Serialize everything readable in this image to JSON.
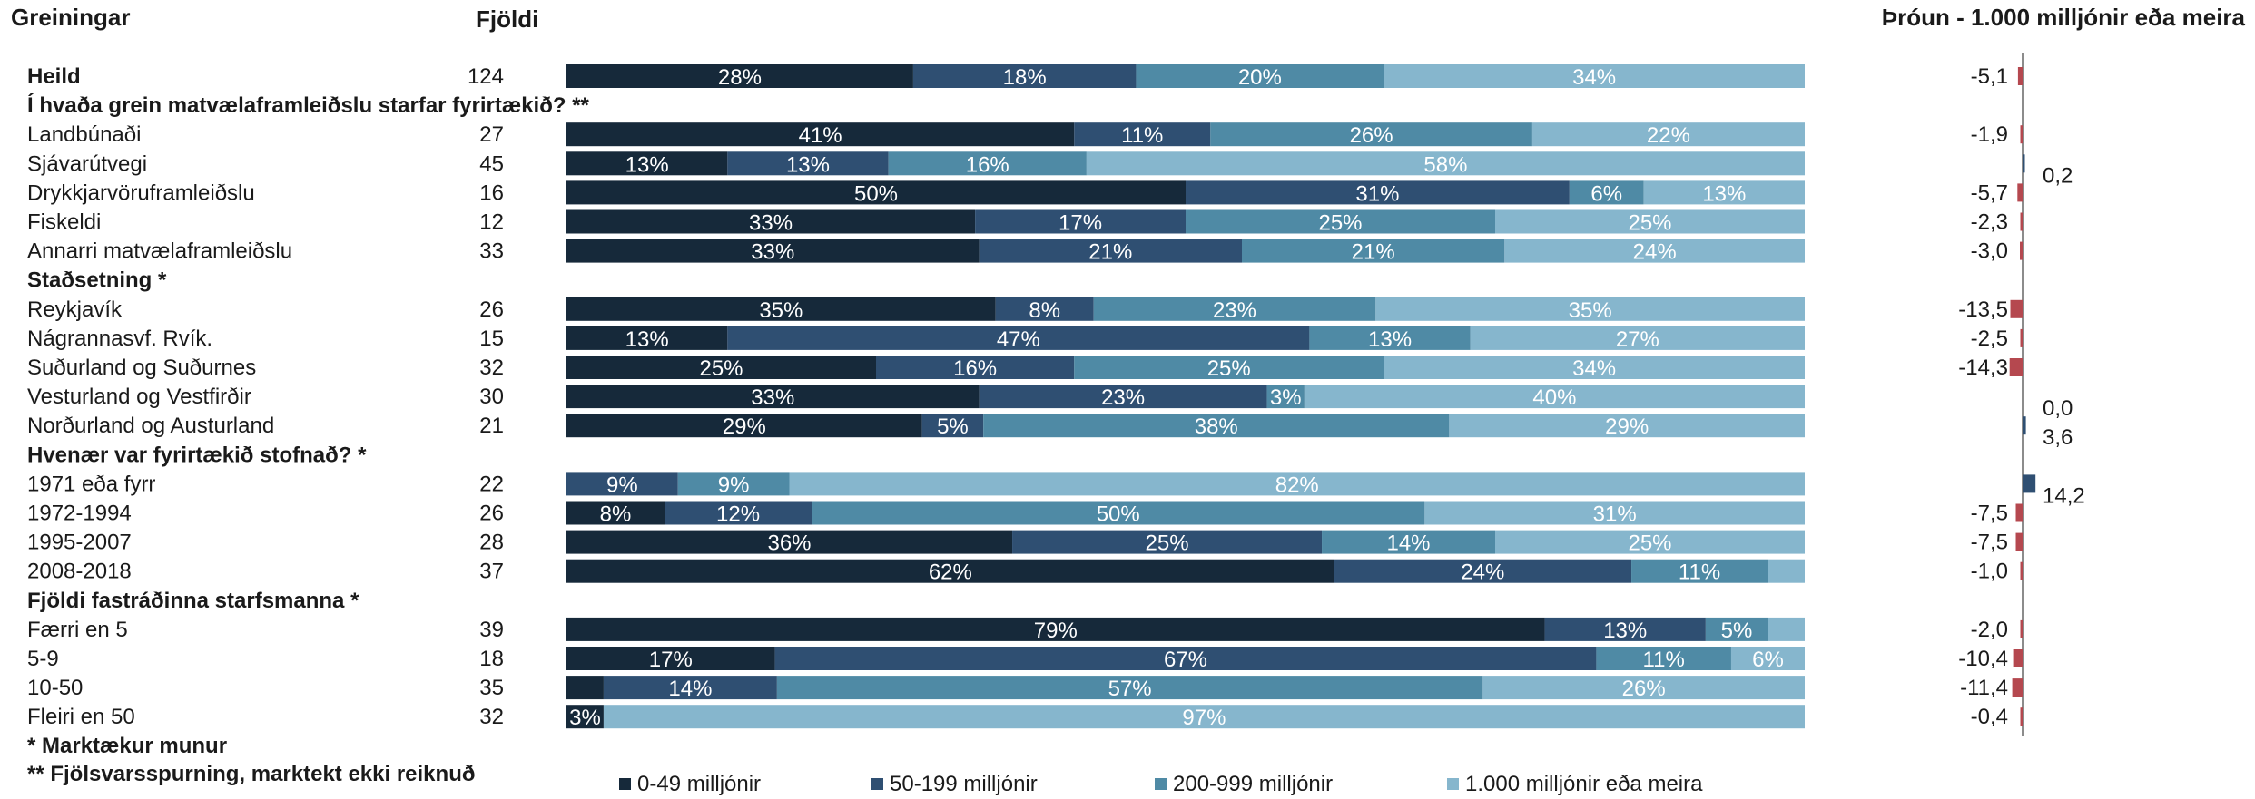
{
  "headers": {
    "category": "Greiningar",
    "count": "Fjöldi",
    "trend": "Þróun - 1.000 milljónir eða meira"
  },
  "footnotes": [
    "* Marktækur munur",
    "** Fjölsvarsspurning, marktekt ekki reiknuð"
  ],
  "colors": {
    "seg1": "#16293a",
    "seg2": "#2f4f72",
    "seg3": "#4f8aa5",
    "seg4": "#86b6cd",
    "trend_negative": "#b5484f",
    "trend_positive": "#2f4f72"
  },
  "chart_data": {
    "type": "bar",
    "stacked": true,
    "orientation": "horizontal",
    "xlim": [
      0,
      100
    ],
    "series": [
      {
        "name": "0-49 milljónir"
      },
      {
        "name": "50-199 milljónir"
      },
      {
        "name": "200-999 milljónir"
      },
      {
        "name": "1.000 milljónir eða meira"
      }
    ],
    "rows": [
      {
        "label": "Heild",
        "bold": true,
        "count": "124",
        "values": [
          28,
          18,
          20,
          34
        ],
        "labels": [
          "28%",
          "18%",
          "20%",
          "34%"
        ],
        "trend": -5.1,
        "trend_label": "-5,1"
      },
      {
        "label": "Í hvaða grein matvælaframleiðslu starfar fyrirtækið? **",
        "heading": true
      },
      {
        "label": "Landbúnaði",
        "count": "27",
        "values": [
          41,
          11,
          26,
          22
        ],
        "labels": [
          "41%",
          "11%",
          "26%",
          "22%"
        ],
        "trend": -1.9,
        "trend_label": "-1,9"
      },
      {
        "label": "Sjávarútvegi",
        "count": "45",
        "values": [
          13,
          13,
          16,
          58
        ],
        "labels": [
          "13%",
          "13%",
          "16%",
          "58%"
        ],
        "trend": 0.2,
        "trend_label": "0,2"
      },
      {
        "label": "Drykkjarvöruframleiðslu",
        "count": "16",
        "values": [
          50,
          31,
          6,
          13
        ],
        "labels": [
          "50%",
          "31%",
          "6%",
          "13%"
        ],
        "trend": -5.7,
        "trend_label": "-5,7"
      },
      {
        "label": "Fiskeldi",
        "count": "12",
        "values": [
          33,
          17,
          25,
          25
        ],
        "labels": [
          "33%",
          "17%",
          "25%",
          "25%"
        ],
        "trend": -2.3,
        "trend_label": "-2,3"
      },
      {
        "label": "Annarri matvælaframleiðslu",
        "count": "33",
        "values": [
          33,
          21,
          21,
          24
        ],
        "labels": [
          "33%",
          "21%",
          "21%",
          "24%"
        ],
        "trend": -3.0,
        "trend_label": "-3,0"
      },
      {
        "label": "Staðsetning *",
        "heading": true
      },
      {
        "label": "Reykjavík",
        "count": "26",
        "values": [
          35,
          8,
          23,
          35
        ],
        "labels": [
          "35%",
          "8%",
          "23%",
          "35%"
        ],
        "trend": -13.5,
        "trend_label": "-13,5"
      },
      {
        "label": "Nágrannasvf. Rvík.",
        "count": "15",
        "values": [
          13,
          47,
          13,
          27
        ],
        "labels": [
          "13%",
          "47%",
          "13%",
          "27%"
        ],
        "trend": -2.5,
        "trend_label": "-2,5"
      },
      {
        "label": "Suðurland og Suðurnes",
        "count": "32",
        "values": [
          25,
          16,
          25,
          34
        ],
        "labels": [
          "25%",
          "16%",
          "25%",
          "34%"
        ],
        "trend": -14.3,
        "trend_label": "-14,3"
      },
      {
        "label": "Vesturland og Vestfirðir",
        "count": "30",
        "values": [
          33,
          23,
          3,
          40
        ],
        "labels": [
          "33%",
          "23%",
          "3%",
          "40%"
        ],
        "trend": 0.0,
        "trend_label": "0,0"
      },
      {
        "label": "Norðurland og Austurland",
        "count": "21",
        "values": [
          29,
          5,
          38,
          29
        ],
        "labels": [
          "29%",
          "5%",
          "38%",
          "29%"
        ],
        "trend": 3.6,
        "trend_label": "3,6"
      },
      {
        "label": "Hvenær var fyrirtækið stofnað? *",
        "heading": true
      },
      {
        "label": "1971 eða fyrr",
        "count": "22",
        "values": [
          0,
          9,
          9,
          82
        ],
        "labels": [
          "",
          "9%",
          "9%",
          "82%"
        ],
        "trend": 14.2,
        "trend_label": "14,2"
      },
      {
        "label": "1972-1994",
        "count": "26",
        "values": [
          8,
          12,
          50,
          31
        ],
        "labels": [
          "8%",
          "12%",
          "50%",
          "31%"
        ],
        "trend": -7.5,
        "trend_label": "-7,5"
      },
      {
        "label": "1995-2007",
        "count": "28",
        "values": [
          36,
          25,
          14,
          25
        ],
        "labels": [
          "36%",
          "25%",
          "14%",
          "25%"
        ],
        "trend": -7.5,
        "trend_label": "-7,5"
      },
      {
        "label": "2008-2018",
        "count": "37",
        "values": [
          62,
          24,
          11,
          3
        ],
        "labels": [
          "62%",
          "24%",
          "11%",
          ""
        ],
        "trend": -1.0,
        "trend_label": "-1,0"
      },
      {
        "label": "Fjöldi fastráðinna starfsmanna *",
        "heading": true
      },
      {
        "label": "Færri en 5",
        "count": "39",
        "values": [
          79,
          13,
          5,
          3
        ],
        "labels": [
          "79%",
          "13%",
          "5%",
          ""
        ],
        "trend": -2.0,
        "trend_label": "-2,0"
      },
      {
        "label": "5-9",
        "count": "18",
        "values": [
          17,
          67,
          11,
          6
        ],
        "labels": [
          "17%",
          "67%",
          "11%",
          "6%"
        ],
        "trend": -10.4,
        "trend_label": "-10,4"
      },
      {
        "label": "10-50",
        "count": "35",
        "values": [
          3,
          14,
          57,
          26
        ],
        "labels": [
          "",
          "14%",
          "57%",
          "26%"
        ],
        "trend": -11.4,
        "trend_label": "-11,4"
      },
      {
        "label": "Fleiri en 50",
        "count": "32",
        "values": [
          3,
          0,
          0,
          97
        ],
        "labels": [
          "3%",
          "",
          "",
          "97%"
        ],
        "trend": -0.4,
        "trend_label": "-0,4"
      }
    ]
  }
}
